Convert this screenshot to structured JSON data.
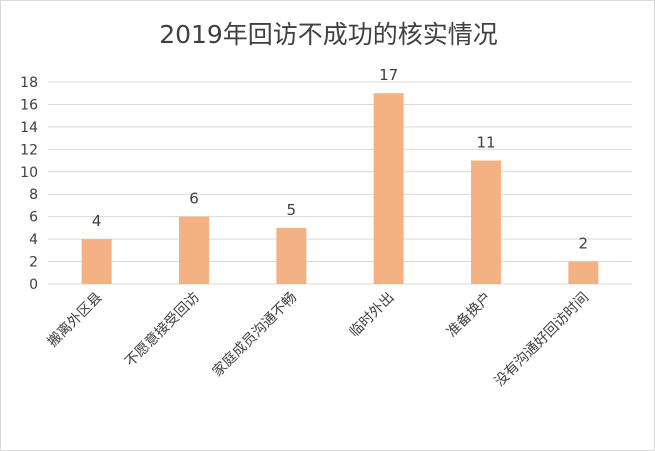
{
  "chart_data": {
    "type": "bar",
    "title": "2019年回访不成功的核实情况",
    "xlabel": "",
    "ylabel": "",
    "categories": [
      "搬离外区县",
      "不愿意接受回访",
      "家庭成员沟通不畅",
      "临时外出",
      "准备换户",
      "没有沟通好回访时间"
    ],
    "values": [
      4,
      6,
      5,
      17,
      11,
      2
    ],
    "ylim": [
      0,
      18
    ],
    "yticks": [
      "0",
      "2",
      "4",
      "6",
      "8",
      "10",
      "12",
      "14",
      "16",
      "18"
    ],
    "grid": true,
    "legend": "none",
    "bar_color": "#F4B183",
    "grid_color": "#D9D9D9",
    "text_color": "#404040"
  }
}
